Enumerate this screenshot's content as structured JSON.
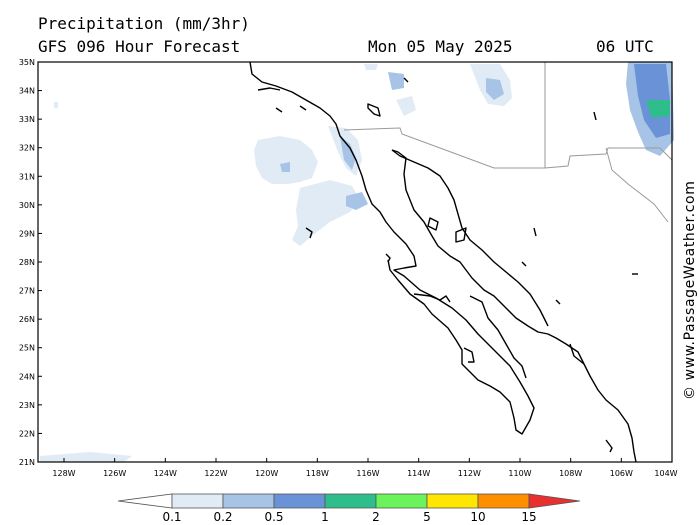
{
  "header": {
    "title": "Precipitation (mm/3hr)",
    "subtitle": "GFS 096 Hour Forecast",
    "date": "Mon 05 May 2025",
    "time": "06 UTC"
  },
  "map": {
    "lat_labels": [
      "35N",
      "34N",
      "33N",
      "32N",
      "31N",
      "30N",
      "29N",
      "28N",
      "27N",
      "26N",
      "25N",
      "24N",
      "23N",
      "22N",
      "21N"
    ],
    "lon_labels": [
      "128W",
      "126W",
      "124W",
      "122W",
      "120W",
      "118W",
      "116W",
      "114W",
      "112W",
      "110W",
      "108W",
      "106W",
      "104W"
    ],
    "colors": {
      "land_outline": "#000000",
      "border": "#9a9a9a",
      "frame": "#000000"
    }
  },
  "legend": {
    "values": [
      "0.1",
      "0.2",
      "0.5",
      "1",
      "2",
      "5",
      "10",
      "15"
    ],
    "colors": [
      "#ffffff",
      "#e1ebf6",
      "#a7c3e6",
      "#6a92d6",
      "#2fbd8c",
      "#6cf25a",
      "#ffe600",
      "#ff8f00",
      "#e83030"
    ]
  },
  "credit": "© www.PassageWeather.com"
}
